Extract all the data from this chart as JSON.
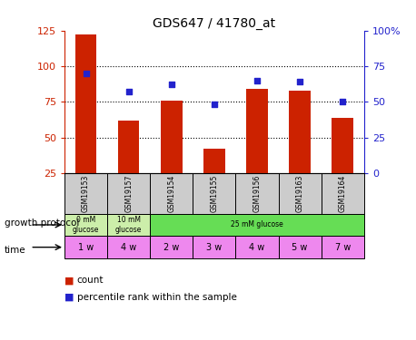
{
  "title": "GDS647 / 41780_at",
  "samples": [
    "GSM19153",
    "GSM19157",
    "GSM19154",
    "GSM19155",
    "GSM19156",
    "GSM19163",
    "GSM19164"
  ],
  "bar_values": [
    122,
    62,
    76,
    42,
    84,
    83,
    64
  ],
  "dot_values_pct": [
    70,
    57,
    62,
    48,
    65,
    64,
    50
  ],
  "ylim_left": [
    25,
    125
  ],
  "ylim_right": [
    0,
    100
  ],
  "yticks_left": [
    25,
    50,
    75,
    100,
    125
  ],
  "yticks_right": [
    0,
    25,
    50,
    75,
    100
  ],
  "ytick_labels_left": [
    "25",
    "50",
    "75",
    "100",
    "125"
  ],
  "ytick_labels_right": [
    "0",
    "25",
    "50",
    "75",
    "100%"
  ],
  "bar_color": "#cc2200",
  "dot_color": "#2222cc",
  "protocol_spans": [
    [
      0,
      1,
      "0 mM\nglucose",
      "#cceeaa"
    ],
    [
      1,
      2,
      "10 mM\nglucose",
      "#cceeaa"
    ],
    [
      2,
      7,
      "25 mM glucose",
      "#66dd55"
    ]
  ],
  "time_labels": [
    "1 w",
    "4 w",
    "2 w",
    "3 w",
    "4 w",
    "5 w",
    "7 w"
  ],
  "time_color": "#ee88ee",
  "sample_bg_color": "#cccccc",
  "legend_count_label": "count",
  "legend_pct_label": "percentile rank within the sample",
  "growth_protocol_text": "growth protocol",
  "time_text": "time"
}
